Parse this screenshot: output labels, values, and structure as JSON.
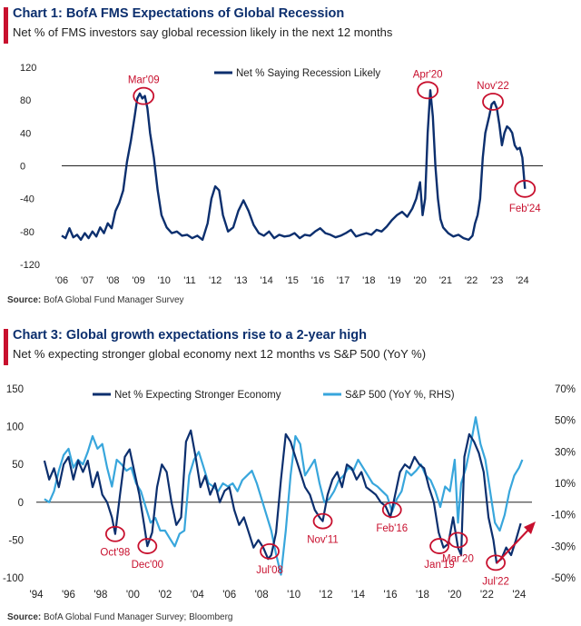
{
  "colors": {
    "navy": "#0c2f6e",
    "red": "#c8102e",
    "light_blue": "#38a6dc",
    "gridline": "#cccccc"
  },
  "chart1": {
    "title": "Chart 1: BofA FMS Expectations of Global Recession",
    "subtitle": "Net % of FMS investors say global recession likely in the next 12 months",
    "source_label": "Source:",
    "source_text": "BofA Global Fund Manager Survey",
    "icon": "red-title-bar-icon"
  },
  "chart3": {
    "title": "Chart 3: Global growth expectations rise to a 2-year high",
    "subtitle": "Net % expecting stronger global economy next 12 months vs S&P 500 (YoY %)",
    "source_label": "Source:",
    "source_text": "BofA Global Fund Manager Survey; Bloomberg",
    "icon": "red-title-bar-icon"
  },
  "chart_data": [
    {
      "type": "line",
      "title": "Chart 1: BofA FMS Expectations of Global Recession",
      "ylim": [
        -120,
        120
      ],
      "yticks": [
        120,
        80,
        40,
        0,
        -40,
        -80,
        -120
      ],
      "xlim": [
        2006,
        2024.8
      ],
      "xtick_values": [
        2006,
        2007,
        2008,
        2009,
        2010,
        2011,
        2012,
        2013,
        2014,
        2015,
        2016,
        2017,
        2018,
        2019,
        2020,
        2021,
        2022,
        2023,
        2024
      ],
      "xtick_labels": [
        "'06",
        "'07",
        "'08",
        "'09",
        "'10",
        "'11",
        "'12",
        "'13",
        "'14",
        "'15",
        "'16",
        "'17",
        "'18",
        "'19",
        "'20",
        "'21",
        "'22",
        "'23",
        "'24"
      ],
      "zero_line": true,
      "series": [
        {
          "name": "Net % Saying Recession Likely",
          "x": [
            2006.0,
            2006.15,
            2006.3,
            2006.45,
            2006.6,
            2006.75,
            2006.9,
            2007.05,
            2007.2,
            2007.35,
            2007.5,
            2007.65,
            2007.8,
            2007.95,
            2008.1,
            2008.25,
            2008.4,
            2008.55,
            2008.7,
            2008.85,
            2008.95,
            2009.05,
            2009.15,
            2009.25,
            2009.35,
            2009.45,
            2009.6,
            2009.75,
            2009.9,
            2010.1,
            2010.3,
            2010.5,
            2010.7,
            2010.9,
            2011.1,
            2011.3,
            2011.5,
            2011.7,
            2011.85,
            2012.0,
            2012.15,
            2012.3,
            2012.5,
            2012.7,
            2012.9,
            2013.1,
            2013.3,
            2013.5,
            2013.7,
            2013.9,
            2014.1,
            2014.3,
            2014.5,
            2014.7,
            2014.9,
            2015.1,
            2015.3,
            2015.5,
            2015.7,
            2015.9,
            2016.1,
            2016.3,
            2016.5,
            2016.7,
            2016.9,
            2017.1,
            2017.3,
            2017.5,
            2017.7,
            2017.9,
            2018.1,
            2018.3,
            2018.5,
            2018.7,
            2018.9,
            2019.1,
            2019.3,
            2019.5,
            2019.7,
            2019.85,
            2020.0,
            2020.1,
            2020.2,
            2020.3,
            2020.4,
            2020.5,
            2020.6,
            2020.7,
            2020.8,
            2020.9,
            2021.1,
            2021.3,
            2021.5,
            2021.7,
            2021.9,
            2022.05,
            2022.15,
            2022.25,
            2022.35,
            2022.45,
            2022.55,
            2022.7,
            2022.8,
            2022.9,
            2023.0,
            2023.1,
            2023.2,
            2023.3,
            2023.4,
            2023.5,
            2023.6,
            2023.7,
            2023.8,
            2023.9,
            2024.0,
            2024.1
          ],
          "values": [
            -85,
            -88,
            -76,
            -87,
            -84,
            -90,
            -82,
            -88,
            -80,
            -86,
            -75,
            -82,
            -70,
            -76,
            -55,
            -45,
            -30,
            5,
            30,
            60,
            82,
            88,
            82,
            85,
            70,
            40,
            10,
            -30,
            -60,
            -75,
            -82,
            -80,
            -85,
            -84,
            -88,
            -85,
            -90,
            -70,
            -40,
            -25,
            -30,
            -60,
            -80,
            -75,
            -55,
            -42,
            -55,
            -72,
            -82,
            -85,
            -80,
            -88,
            -84,
            -86,
            -85,
            -82,
            -88,
            -84,
            -85,
            -80,
            -76,
            -82,
            -84,
            -87,
            -85,
            -82,
            -78,
            -86,
            -84,
            -82,
            -84,
            -78,
            -80,
            -74,
            -66,
            -60,
            -56,
            -62,
            -52,
            -40,
            -20,
            -60,
            -40,
            40,
            92,
            60,
            0,
            -40,
            -65,
            -75,
            -82,
            -86,
            -84,
            -88,
            -90,
            -85,
            -70,
            -60,
            -40,
            10,
            40,
            60,
            75,
            78,
            70,
            50,
            25,
            40,
            48,
            45,
            40,
            25,
            20,
            22,
            10,
            -28
          ]
        }
      ],
      "annotations": [
        {
          "label": "Mar'09",
          "x": 2009.2,
          "y": 85
        },
        {
          "label": "Apr'20",
          "x": 2020.3,
          "y": 92
        },
        {
          "label": "Nov'22",
          "x": 2022.85,
          "y": 78
        },
        {
          "label": "Feb'24",
          "x": 2024.1,
          "y": -28
        }
      ],
      "legend": {
        "label": "Net % Saying Recession Likely",
        "position": "top-center"
      }
    },
    {
      "type": "line",
      "title": "Chart 3: Global growth expectations rise to a 2-year high",
      "ylim": [
        -100,
        150
      ],
      "yticks": [
        150,
        100,
        50,
        0,
        -50,
        -100
      ],
      "y2lim": [
        -50,
        70
      ],
      "y2ticks": [
        70,
        50,
        30,
        10,
        -10,
        -30,
        -50
      ],
      "y2tick_labels": [
        "70%",
        "50%",
        "30%",
        "10%",
        "-10%",
        "-30%",
        "-50%"
      ],
      "xlim": [
        1994,
        2024.8
      ],
      "xtick_values": [
        1994,
        1996,
        1998,
        2000,
        2002,
        2004,
        2006,
        2008,
        2010,
        2012,
        2014,
        2016,
        2018,
        2020,
        2022,
        2024
      ],
      "xtick_labels": [
        "'94",
        "'96",
        "'98",
        "'00",
        "'02",
        "'04",
        "'06",
        "'08",
        "'10",
        "'12",
        "'14",
        "'16",
        "'18",
        "'20",
        "'22",
        "'24"
      ],
      "zero_line": true,
      "series": [
        {
          "name": "Net % Expecting Stronger Economy",
          "axis": "left",
          "x": [
            1994.5,
            1994.8,
            1995.1,
            1995.4,
            1995.7,
            1996.0,
            1996.3,
            1996.6,
            1996.9,
            1997.2,
            1997.5,
            1997.8,
            1998.1,
            1998.4,
            1998.7,
            1998.9,
            1999.2,
            1999.5,
            1999.8,
            2000.1,
            2000.4,
            2000.7,
            2000.9,
            2001.2,
            2001.5,
            2001.8,
            2002.1,
            2002.4,
            2002.7,
            2003.0,
            2003.3,
            2003.6,
            2003.9,
            2004.2,
            2004.5,
            2004.8,
            2005.1,
            2005.4,
            2005.7,
            2006.0,
            2006.3,
            2006.6,
            2006.9,
            2007.2,
            2007.5,
            2007.8,
            2008.1,
            2008.4,
            2008.6,
            2008.9,
            2009.2,
            2009.5,
            2009.8,
            2010.1,
            2010.4,
            2010.7,
            2011.0,
            2011.3,
            2011.6,
            2011.8,
            2012.1,
            2012.4,
            2012.7,
            2013.0,
            2013.3,
            2013.6,
            2013.9,
            2014.2,
            2014.5,
            2014.8,
            2015.1,
            2015.4,
            2015.7,
            2016.0,
            2016.3,
            2016.6,
            2016.9,
            2017.2,
            2017.5,
            2017.8,
            2018.1,
            2018.4,
            2018.7,
            2019.0,
            2019.3,
            2019.6,
            2019.9,
            2020.2,
            2020.4,
            2020.6,
            2020.9,
            2021.2,
            2021.5,
            2021.8,
            2022.1,
            2022.4,
            2022.6,
            2022.9,
            2023.2,
            2023.5,
            2023.8,
            2024.1
          ],
          "values": [
            55,
            30,
            45,
            20,
            50,
            60,
            30,
            55,
            40,
            55,
            20,
            40,
            10,
            0,
            -20,
            -42,
            10,
            60,
            70,
            40,
            10,
            -30,
            -58,
            -40,
            20,
            50,
            40,
            0,
            -30,
            -20,
            80,
            95,
            60,
            20,
            35,
            10,
            25,
            0,
            15,
            20,
            -10,
            -30,
            -20,
            -40,
            -60,
            -50,
            -60,
            -75,
            -70,
            -40,
            30,
            90,
            80,
            60,
            40,
            20,
            10,
            -10,
            -20,
            -25,
            10,
            30,
            40,
            20,
            50,
            45,
            30,
            40,
            20,
            15,
            10,
            0,
            -5,
            -20,
            10,
            40,
            50,
            45,
            60,
            50,
            45,
            20,
            0,
            -40,
            -60,
            -55,
            -20,
            -60,
            -70,
            60,
            90,
            80,
            65,
            40,
            -20,
            -50,
            -80,
            -75,
            -60,
            -70,
            -50,
            -28
          ]
        },
        {
          "name": "S&P 500 (YoY %, RHS)",
          "axis": "right",
          "x": [
            1994.5,
            1994.8,
            1995.1,
            1995.4,
            1995.7,
            1996.0,
            1996.3,
            1996.6,
            1996.9,
            1997.2,
            1997.5,
            1997.8,
            1998.1,
            1998.4,
            1998.7,
            1999.0,
            1999.3,
            1999.6,
            1999.9,
            2000.2,
            2000.5,
            2000.8,
            2001.1,
            2001.4,
            2001.7,
            2002.0,
            2002.3,
            2002.6,
            2002.9,
            2003.2,
            2003.5,
            2003.8,
            2004.1,
            2004.4,
            2004.7,
            2005.0,
            2005.3,
            2005.6,
            2005.9,
            2006.2,
            2006.5,
            2006.8,
            2007.1,
            2007.4,
            2007.7,
            2008.0,
            2008.3,
            2008.6,
            2008.9,
            2009.2,
            2009.5,
            2009.8,
            2010.1,
            2010.4,
            2010.7,
            2011.0,
            2011.3,
            2011.6,
            2011.9,
            2012.2,
            2012.5,
            2012.8,
            2013.1,
            2013.4,
            2013.7,
            2014.0,
            2014.3,
            2014.6,
            2014.9,
            2015.2,
            2015.5,
            2015.8,
            2016.1,
            2016.4,
            2016.7,
            2017.0,
            2017.3,
            2017.6,
            2017.9,
            2018.2,
            2018.5,
            2018.8,
            2019.1,
            2019.4,
            2019.7,
            2020.0,
            2020.2,
            2020.4,
            2020.7,
            2021.0,
            2021.3,
            2021.6,
            2021.9,
            2022.2,
            2022.5,
            2022.8,
            2023.1,
            2023.4,
            2023.7,
            2024.0,
            2024.2
          ],
          "values": [
            0,
            -2,
            5,
            18,
            28,
            32,
            20,
            25,
            22,
            30,
            40,
            32,
            35,
            20,
            8,
            25,
            22,
            18,
            20,
            10,
            5,
            -5,
            -15,
            -12,
            -20,
            -20,
            -25,
            -30,
            -22,
            -20,
            15,
            25,
            30,
            20,
            10,
            8,
            5,
            10,
            8,
            10,
            5,
            12,
            15,
            18,
            10,
            0,
            -10,
            -20,
            -35,
            -48,
            -20,
            15,
            40,
            35,
            15,
            20,
            25,
            10,
            -2,
            0,
            5,
            12,
            15,
            20,
            18,
            25,
            20,
            15,
            10,
            8,
            5,
            2,
            -8,
            0,
            5,
            18,
            15,
            18,
            22,
            15,
            12,
            5,
            -5,
            8,
            5,
            25,
            -15,
            10,
            20,
            35,
            52,
            35,
            25,
            5,
            -15,
            -20,
            -10,
            5,
            15,
            20,
            25
          ]
        }
      ],
      "annotations": [
        {
          "label": "Oct'98",
          "x": 1998.9,
          "y": -42
        },
        {
          "label": "Dec'00",
          "x": 2000.9,
          "y": -58
        },
        {
          "label": "Jul'08",
          "x": 2008.5,
          "y": -65
        },
        {
          "label": "Nov'11",
          "x": 2011.8,
          "y": -25
        },
        {
          "label": "Feb'16",
          "x": 2016.1,
          "y": -10
        },
        {
          "label": "Jan'19",
          "x": 2019.05,
          "y": -58
        },
        {
          "label": "Mar'20",
          "x": 2020.2,
          "y": -50
        },
        {
          "label": "Jul'22",
          "x": 2022.55,
          "y": -80
        }
      ],
      "legend": {
        "labels": [
          "Net % Expecting Stronger Economy",
          "S&P 500 (YoY %, RHS)"
        ],
        "position": "top"
      }
    }
  ]
}
